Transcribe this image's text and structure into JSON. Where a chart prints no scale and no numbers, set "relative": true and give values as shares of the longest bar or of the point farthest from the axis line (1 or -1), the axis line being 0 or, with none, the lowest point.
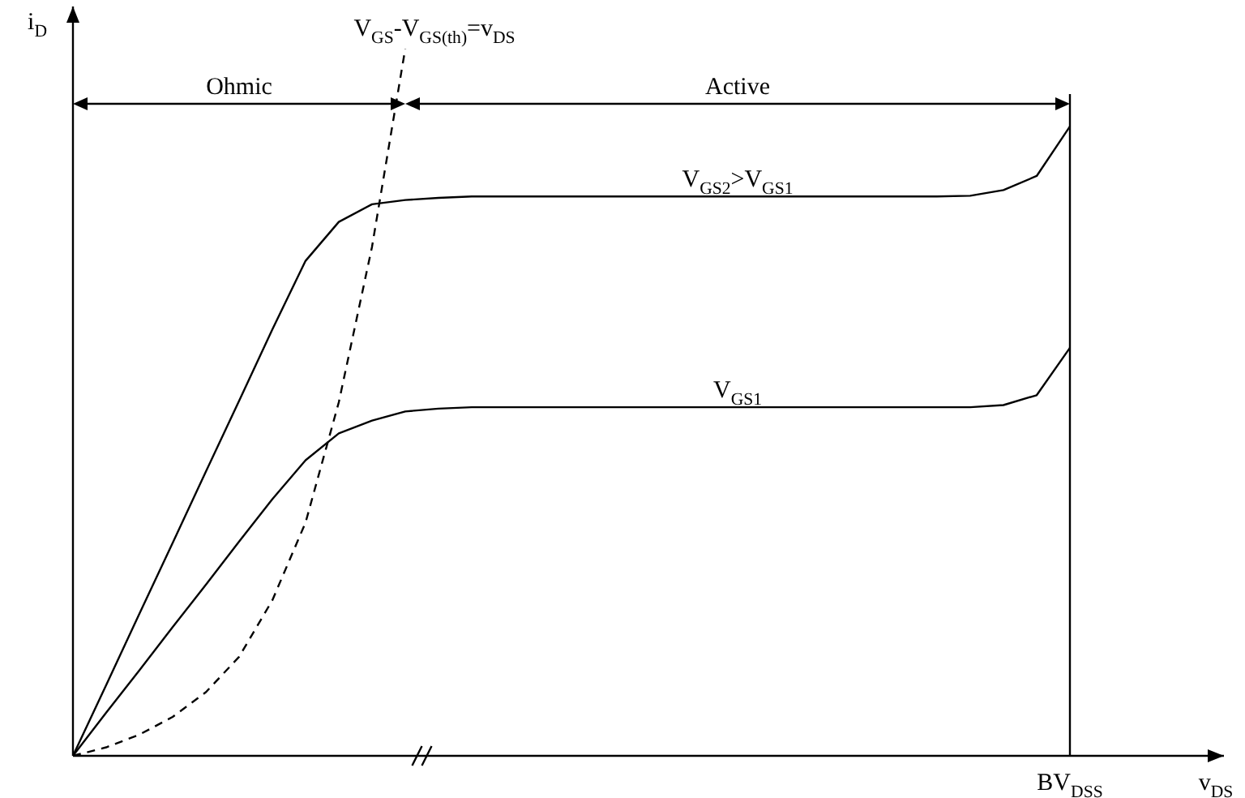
{
  "chart_data": {
    "type": "line",
    "relative": true,
    "xlabel": "v$_{DS}$",
    "ylabel": "i$_{D}$",
    "marker": "none",
    "categories": [
      null,
      null,
      null,
      null,
      null,
      null,
      null,
      null,
      null,
      null,
      null,
      null,
      null,
      null,
      null,
      null,
      null,
      null,
      null,
      null,
      null,
      null,
      null,
      null,
      null,
      null,
      null,
      null,
      null,
      null,
      null,
      null,
      null,
      null,
      null
    ],
    "series": [
      {
        "name": "V$_{GS2}$>V$_{GS1}$",
        "color": "#000000",
        "values": [
          0,
          0.1,
          0.201,
          0.301,
          0.402,
          0.502,
          0.603,
          0.7,
          0.755,
          0.78,
          0.786,
          0.789,
          0.791,
          0.791,
          0.791,
          0.791,
          0.791,
          0.791,
          0.791,
          0.791,
          0.791,
          0.791,
          0.791,
          0.791,
          0.791,
          0.791,
          0.791,
          0.792,
          0.8,
          0.82,
          0.89,
          null,
          null,
          null,
          null
        ]
      },
      {
        "name": "V$_{GS1}$",
        "color": "#000000",
        "values": [
          0,
          0.061,
          0.121,
          0.182,
          0.242,
          0.303,
          0.363,
          0.418,
          0.456,
          0.474,
          0.487,
          0.491,
          0.493,
          0.493,
          0.493,
          0.493,
          0.493,
          0.493,
          0.493,
          0.493,
          0.493,
          0.493,
          0.493,
          0.493,
          0.493,
          0.493,
          0.493,
          0.493,
          0.496,
          0.51,
          0.577,
          null,
          null,
          null,
          null
        ]
      },
      {
        "name": "V$_{GS}$-V$_{GS(th)}$=v$_{DS}$",
        "color": "#000000",
        "line_style": "dashed",
        "values": [
          0,
          0.012,
          0.03,
          0.055,
          0.09,
          0.14,
          0.22,
          0.33,
          0.5,
          0.72,
          1,
          null,
          null,
          null,
          null,
          null,
          null,
          null,
          null,
          null,
          null,
          null,
          null,
          null,
          null,
          null,
          null,
          null,
          null,
          null,
          null,
          null,
          null,
          null,
          null
        ]
      }
    ],
    "ref_lines": [
      {
        "axis": "x",
        "label": "BV$_{DSS}$"
      }
    ],
    "annotations": [
      "Ohmic",
      "Active"
    ]
  }
}
